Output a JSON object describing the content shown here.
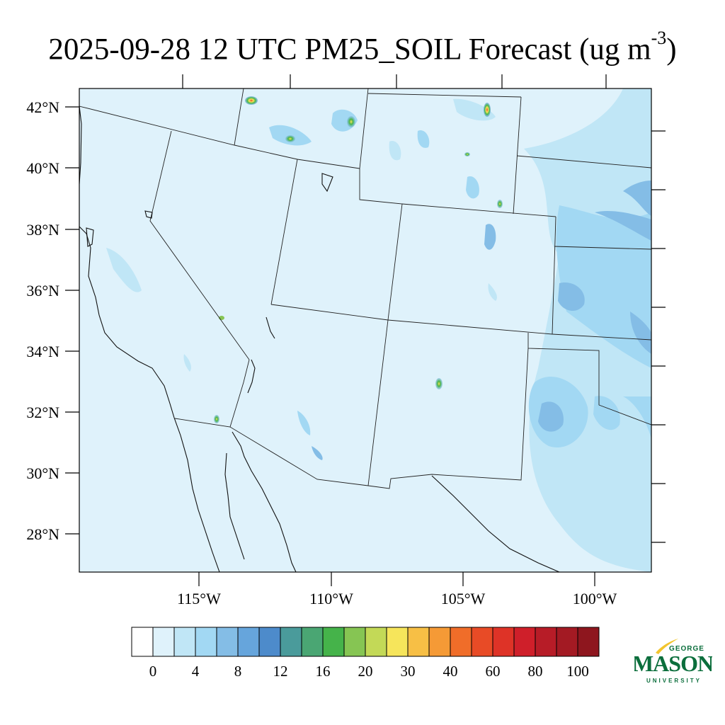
{
  "title": {
    "date": "2025-09-28",
    "hour": "12 UTC",
    "variable": "PM25_SOIL",
    "word": "Forecast",
    "units_prefix": "(ug m",
    "units_exp": "-3",
    "units_suffix": ")"
  },
  "map": {
    "lat_labels": [
      "42°N",
      "40°N",
      "38°N",
      "36°N",
      "34°N",
      "32°N",
      "30°N",
      "28°N"
    ],
    "lon_labels": [
      "115°W",
      "110°W",
      "105°W",
      "100°W"
    ]
  },
  "colorbar": {
    "labels": [
      "0",
      "4",
      "8",
      "12",
      "16",
      "20",
      "30",
      "40",
      "60",
      "80",
      "100"
    ],
    "colors": [
      "#ffffff",
      "#dff2fb",
      "#c0e6f6",
      "#a2d8f3",
      "#84bde6",
      "#66a5dc",
      "#4d8bcb",
      "#4a9b9b",
      "#4aa673",
      "#45b34a",
      "#86c553",
      "#c3d957",
      "#f6e55b",
      "#f7bf45",
      "#f59a36",
      "#f06d29",
      "#e84b26",
      "#de3327",
      "#cf1f2a",
      "#b71c27",
      "#a31a23",
      "#8e161e"
    ]
  },
  "logo": {
    "line1": "GEORGE",
    "line2": "MASON",
    "line3": "UNIVERSITY",
    "accent_color": "#f2c52e",
    "brand_color": "#0b6e3c"
  },
  "colors": {
    "background_field": "#dff2fb",
    "level_4": "#c0e6f6",
    "level_8": "#a2d8f3",
    "level_12": "#84bde6"
  }
}
